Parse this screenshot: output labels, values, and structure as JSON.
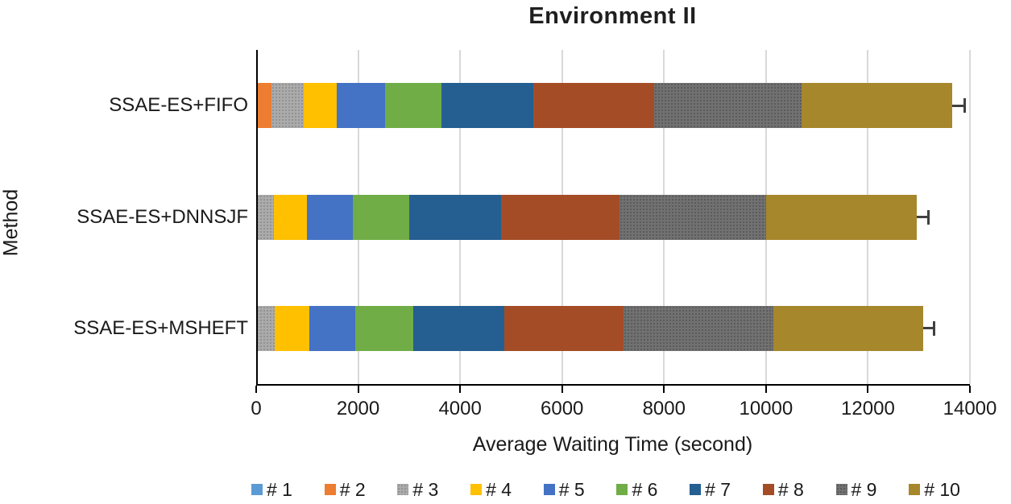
{
  "title": "Environment II",
  "axes": {
    "x_title": "Average Waiting Time (second)",
    "y_title": "Method"
  },
  "chart_data": {
    "type": "bar",
    "orientation": "horizontal-stacked",
    "title": "Environment II",
    "xlabel": "Average Waiting Time (second)",
    "ylabel": "Method",
    "xlim": [
      0,
      14000
    ],
    "x_ticks": [
      0,
      2000,
      4000,
      6000,
      8000,
      10000,
      12000,
      14000
    ],
    "grid": "vertical-gridlines",
    "legend_position": "bottom",
    "categories": [
      "SSAE-ES+FIFO",
      "SSAE-ES+DNNSJF",
      "SSAE-ES+MSHEFT"
    ],
    "series": [
      {
        "name": "# 1",
        "color": "#5B9BD5",
        "pattern": "none",
        "values": [
          0,
          0,
          0
        ]
      },
      {
        "name": "# 2",
        "color": "#ED7D31",
        "pattern": "none",
        "values": [
          300,
          0,
          0
        ]
      },
      {
        "name": "# 3",
        "color": "#ABABAB",
        "pattern": "dots-light",
        "values": [
          630,
          340,
          370
        ]
      },
      {
        "name": "# 4",
        "color": "#FFC000",
        "pattern": "none",
        "values": [
          650,
          660,
          670
        ]
      },
      {
        "name": "# 5",
        "color": "#4472C4",
        "pattern": "none",
        "values": [
          950,
          900,
          910
        ]
      },
      {
        "name": "# 6",
        "color": "#70AD47",
        "pattern": "none",
        "values": [
          1110,
          1110,
          1130
        ]
      },
      {
        "name": "# 7",
        "color": "#255E91",
        "pattern": "none",
        "values": [
          1800,
          1790,
          1790
        ]
      },
      {
        "name": "# 8",
        "color": "#A44C26",
        "pattern": "none",
        "values": [
          2360,
          2320,
          2330
        ]
      },
      {
        "name": "# 9",
        "color": "#717171",
        "pattern": "dots-dark",
        "values": [
          2890,
          2880,
          2950
        ]
      },
      {
        "name": "# 10",
        "color": "#A6872C",
        "pattern": "none",
        "values": [
          2970,
          2960,
          2940
        ]
      }
    ],
    "totals": [
      13660,
      12960,
      13090
    ],
    "error_bars_plus": [
      250,
      240,
      210
    ]
  },
  "style_colors": {
    "axis": "#000000",
    "gridline": "#D9D9D9",
    "error_bar": "#404040",
    "text": "#1A1A1A"
  }
}
